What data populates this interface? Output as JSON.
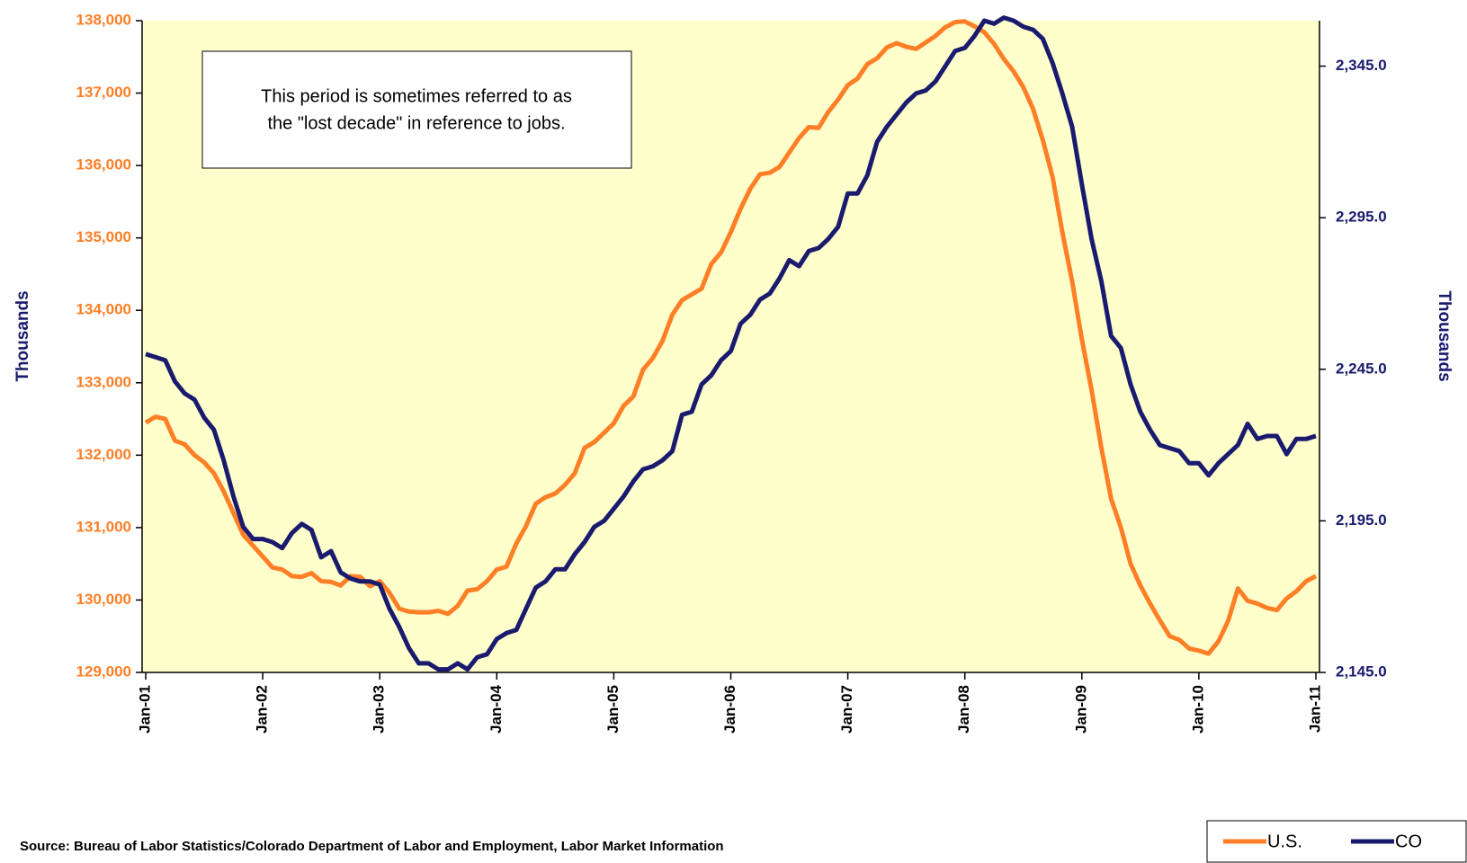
{
  "chart_data": {
    "type": "line",
    "y_label": "Thousands",
    "y2_label": "Thousands",
    "annotation": [
      "This period is sometimes referred to as",
      "the \"lost decade\" in reference to jobs."
    ],
    "source": "Source: Bureau of Labor Statistics/Colorado Department of Labor and Employment, Labor Market Information",
    "categories": [
      "Jan-01",
      null,
      null,
      null,
      null,
      null,
      null,
      null,
      null,
      null,
      null,
      null,
      "Jan-02",
      null,
      null,
      null,
      null,
      null,
      null,
      null,
      null,
      null,
      null,
      null,
      "Jan-03",
      null,
      null,
      null,
      null,
      null,
      null,
      null,
      null,
      null,
      null,
      null,
      "Jan-04",
      null,
      null,
      null,
      null,
      null,
      null,
      null,
      null,
      null,
      null,
      null,
      "Jan-05",
      null,
      null,
      null,
      null,
      null,
      null,
      null,
      null,
      null,
      null,
      null,
      "Jan-06",
      null,
      null,
      null,
      null,
      null,
      null,
      null,
      null,
      null,
      null,
      null,
      "Jan-07",
      null,
      null,
      null,
      null,
      null,
      null,
      null,
      null,
      null,
      null,
      null,
      "Jan-08",
      null,
      null,
      null,
      null,
      null,
      null,
      null,
      null,
      null,
      null,
      null,
      "Jan-09",
      null,
      null,
      null,
      null,
      null,
      null,
      null,
      null,
      null,
      null,
      null,
      "Jan-10",
      null,
      null,
      null,
      null,
      null,
      null,
      null,
      null,
      null,
      null,
      null,
      "Jan-11"
    ],
    "ylim": [
      129000,
      138000
    ],
    "yticks": [
      {
        "value": 129000,
        "label": "129,000"
      },
      {
        "value": 130000,
        "label": "130,000"
      },
      {
        "value": 131000,
        "label": "131,000"
      },
      {
        "value": 132000,
        "label": "132,000"
      },
      {
        "value": 133000,
        "label": "133,000"
      },
      {
        "value": 134000,
        "label": "134,000"
      },
      {
        "value": 135000,
        "label": "135,000"
      },
      {
        "value": 136000,
        "label": "136,000"
      },
      {
        "value": 137000,
        "label": "137,000"
      },
      {
        "value": 138000,
        "label": "138,000"
      }
    ],
    "y2lim": [
      2145,
      2360
    ],
    "y2ticks": [
      {
        "value": 2145,
        "label": "2,145.0"
      },
      {
        "value": 2195,
        "label": "2,195.0"
      },
      {
        "value": 2245,
        "label": "2,245.0"
      },
      {
        "value": 2295,
        "label": "2,295.0"
      },
      {
        "value": 2345,
        "label": "2,345.0"
      }
    ],
    "background": "#ffffcc",
    "series": [
      {
        "name": "U.S.",
        "color": "#ff7f27",
        "axis": "y",
        "values": [
          132450,
          132530,
          132500,
          132200,
          132150,
          132000,
          131900,
          131750,
          131500,
          131200,
          130900,
          130750,
          130600,
          130450,
          130420,
          130330,
          130320,
          130370,
          130260,
          130250,
          130200,
          130330,
          130320,
          130190,
          130260,
          130100,
          129880,
          129840,
          129830,
          129830,
          129850,
          129810,
          129920,
          130130,
          130150,
          130260,
          130420,
          130460,
          130780,
          131020,
          131330,
          131420,
          131470,
          131590,
          131750,
          132100,
          132180,
          132310,
          132440,
          132680,
          132810,
          133180,
          133340,
          133580,
          133940,
          134140,
          134220,
          134300,
          134640,
          134800,
          135080,
          135400,
          135680,
          135880,
          135900,
          135980,
          136180,
          136380,
          136530,
          136520,
          136740,
          136910,
          137110,
          137200,
          137400,
          137480,
          137630,
          137690,
          137640,
          137610,
          137700,
          137790,
          137910,
          137980,
          137990,
          137920,
          137840,
          137680,
          137470,
          137300,
          137080,
          136780,
          136350,
          135840,
          135080,
          134400,
          133600,
          132900,
          132100,
          131400,
          131000,
          130500,
          130200,
          129950,
          129720,
          129500,
          129450,
          129330,
          129300,
          129260,
          129430,
          129710,
          130160,
          129990,
          129950,
          129890,
          129860,
          130020,
          130120,
          130260,
          130330
        ]
      },
      {
        "name": "CO",
        "color": "#1a1a6e",
        "axis": "y2",
        "values": [
          2250,
          2249,
          2248,
          2241,
          2237,
          2235,
          2229,
          2225,
          2215,
          2203,
          2193,
          2189,
          2189,
          2188,
          2186,
          2191,
          2194,
          2192,
          2183,
          2185,
          2178,
          2176,
          2175,
          2175,
          2174,
          2166,
          2160,
          2153,
          2148,
          2148,
          2146,
          2146,
          2148,
          2146,
          2150,
          2151,
          2156,
          2158,
          2159,
          2166,
          2173,
          2175,
          2179,
          2179,
          2184,
          2188,
          2193,
          2195,
          2199,
          2203,
          2208,
          2212,
          2213,
          2215,
          2218,
          2230,
          2231,
          2240,
          2243,
          2248,
          2251,
          2260,
          2263,
          2268,
          2270,
          2275,
          2281,
          2279,
          2284,
          2285,
          2288,
          2292,
          2303,
          2303,
          2309,
          2320,
          2325,
          2329,
          2333,
          2336,
          2337,
          2340,
          2345,
          2350,
          2351,
          2355,
          2360,
          2359,
          2361,
          2360,
          2358,
          2357,
          2354,
          2346,
          2336,
          2325,
          2306,
          2288,
          2274,
          2256,
          2252,
          2240,
          2231,
          2225,
          2220,
          2219,
          2218,
          2214,
          2214,
          2210,
          2214,
          2217,
          2220,
          2227,
          2222,
          2223,
          2223,
          2217,
          2222,
          2222,
          2223
        ]
      }
    ]
  }
}
